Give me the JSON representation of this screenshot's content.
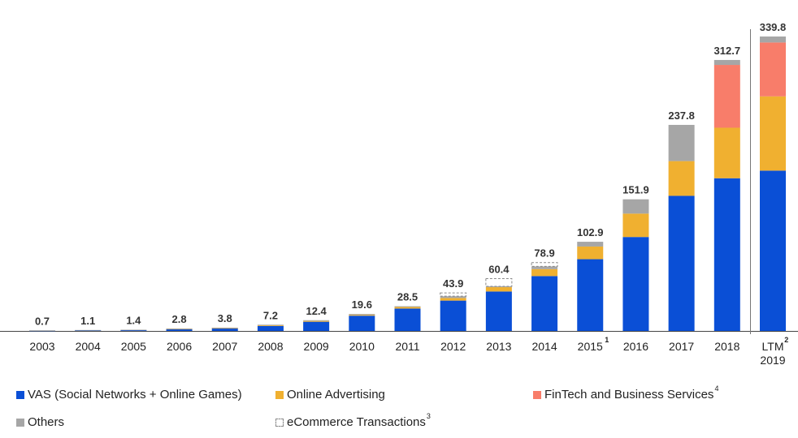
{
  "chart_data": {
    "type": "bar",
    "stacked": true,
    "title": "",
    "xlabel": "",
    "ylabel": "",
    "ylim": [
      0,
      345
    ],
    "grid": false,
    "legend_position": "bottom",
    "categories": [
      {
        "label": "2003",
        "note": ""
      },
      {
        "label": "2004",
        "note": ""
      },
      {
        "label": "2005",
        "note": ""
      },
      {
        "label": "2006",
        "note": ""
      },
      {
        "label": "2007",
        "note": ""
      },
      {
        "label": "2008",
        "note": ""
      },
      {
        "label": "2009",
        "note": ""
      },
      {
        "label": "2010",
        "note": ""
      },
      {
        "label": "2011",
        "note": ""
      },
      {
        "label": "2012",
        "note": ""
      },
      {
        "label": "2013",
        "note": ""
      },
      {
        "label": "2014",
        "note": ""
      },
      {
        "label": "2015",
        "note": "1"
      },
      {
        "label": "2016",
        "note": ""
      },
      {
        "label": "2017",
        "note": ""
      },
      {
        "label": "2018",
        "note": ""
      },
      {
        "label": "LTM\n2019",
        "note": "2"
      }
    ],
    "totals": [
      0.7,
      1.1,
      1.4,
      2.8,
      3.8,
      7.2,
      12.4,
      19.6,
      28.5,
      43.9,
      60.4,
      78.9,
      102.9,
      151.9,
      237.8,
      312.7,
      339.8
    ],
    "totals_labels": [
      "0.7",
      "1.1",
      "1.4",
      "2.8",
      "3.8",
      "7.2",
      "12.4",
      "19.6",
      "28.5",
      "43.9",
      "60.4",
      "78.9",
      "102.9",
      "151.9",
      "237.8",
      "312.7",
      "339.8"
    ],
    "series": [
      {
        "name": "VAS (Social Networks + Online Games)",
        "note": "",
        "color": "#0a4fd6",
        "style": "solid",
        "values": [
          0.5,
          0.8,
          1.0,
          2.2,
          3.0,
          5.7,
          10.6,
          17.6,
          25.8,
          35.0,
          45.5,
          63.3,
          82.8,
          108.4,
          155.9,
          176.2,
          185.0
        ]
      },
      {
        "name": "Online Advertising",
        "note": "",
        "color": "#f0b030",
        "style": "solid",
        "values": [
          0.0,
          0.0,
          0.0,
          0.3,
          0.4,
          1.0,
          1.0,
          1.0,
          1.8,
          3.0,
          5.0,
          8.0,
          14.6,
          27.0,
          40.1,
          58.3,
          85.7
        ]
      },
      {
        "name": "FinTech and Business Services",
        "note": "4",
        "color": "#f87d6a",
        "style": "solid",
        "values": [
          0,
          0,
          0,
          0,
          0,
          0,
          0,
          0,
          0,
          0,
          0,
          0,
          0,
          0,
          0,
          72.5,
          62.2
        ]
      },
      {
        "name": "Others",
        "note": "",
        "color": "#a6a6a6",
        "style": "solid",
        "values": [
          0.2,
          0.3,
          0.4,
          0.3,
          0.4,
          0.5,
          0.8,
          1.0,
          0.9,
          2.1,
          1.0,
          3.2,
          5.5,
          16.5,
          41.8,
          5.7,
          6.9
        ]
      },
      {
        "name": "eCommerce Transactions",
        "note": "3",
        "color": "#ffffff",
        "style": "dashed",
        "values": [
          0,
          0,
          0,
          0,
          0,
          0,
          0,
          0,
          0,
          3.8,
          8.9,
          4.4,
          0,
          0,
          0,
          0,
          0
        ]
      }
    ]
  }
}
